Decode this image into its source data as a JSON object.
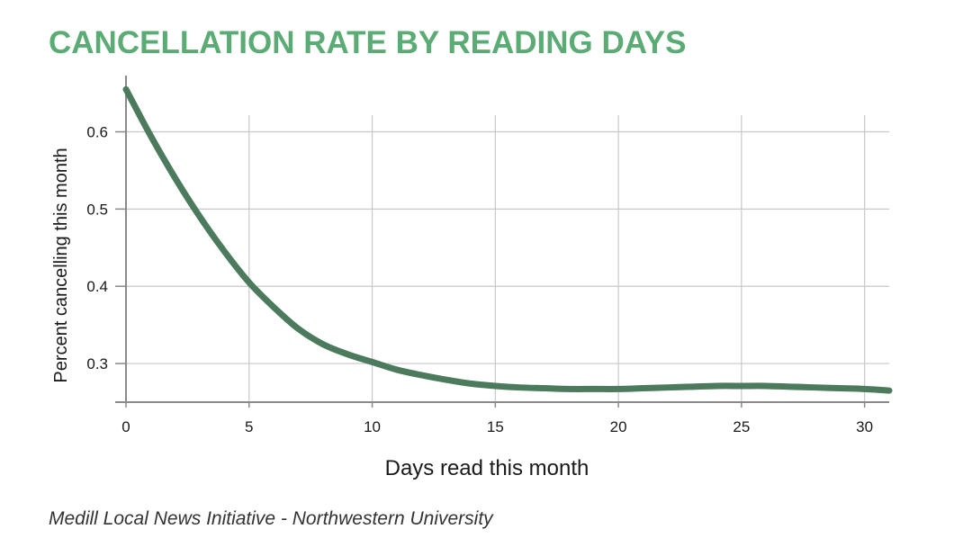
{
  "colors": {
    "title": "#5aab74",
    "line": "#4b7a5c",
    "grid": "#c8c8c8",
    "axis": "#8a8a8a"
  },
  "chart_data": {
    "type": "line",
    "title": "CANCELLATION RATE BY READING DAYS",
    "xlabel": "Days read this month",
    "ylabel": "Percent cancelling this month",
    "xlim": [
      0,
      31
    ],
    "ylim": [
      0.25,
      0.66
    ],
    "xticks": [
      0,
      5,
      10,
      15,
      20,
      25,
      30
    ],
    "yticks": [
      0.3,
      0.4,
      0.5,
      0.6
    ],
    "grid": true,
    "series": [
      {
        "x": [
          0,
          1,
          2,
          3,
          4,
          5,
          6,
          7,
          8,
          9,
          10,
          11,
          12,
          13,
          14,
          15,
          16,
          17,
          18,
          19,
          20,
          21,
          22,
          23,
          24,
          25,
          26,
          27,
          28,
          29,
          30,
          31
        ],
        "y": [
          0.655,
          0.595,
          0.54,
          0.49,
          0.445,
          0.405,
          0.373,
          0.345,
          0.325,
          0.312,
          0.302,
          0.292,
          0.285,
          0.279,
          0.274,
          0.271,
          0.269,
          0.268,
          0.267,
          0.267,
          0.267,
          0.268,
          0.269,
          0.27,
          0.271,
          0.271,
          0.271,
          0.27,
          0.269,
          0.268,
          0.267,
          0.265
        ]
      }
    ]
  },
  "source": "Medill Local News Initiative - Northwestern University"
}
